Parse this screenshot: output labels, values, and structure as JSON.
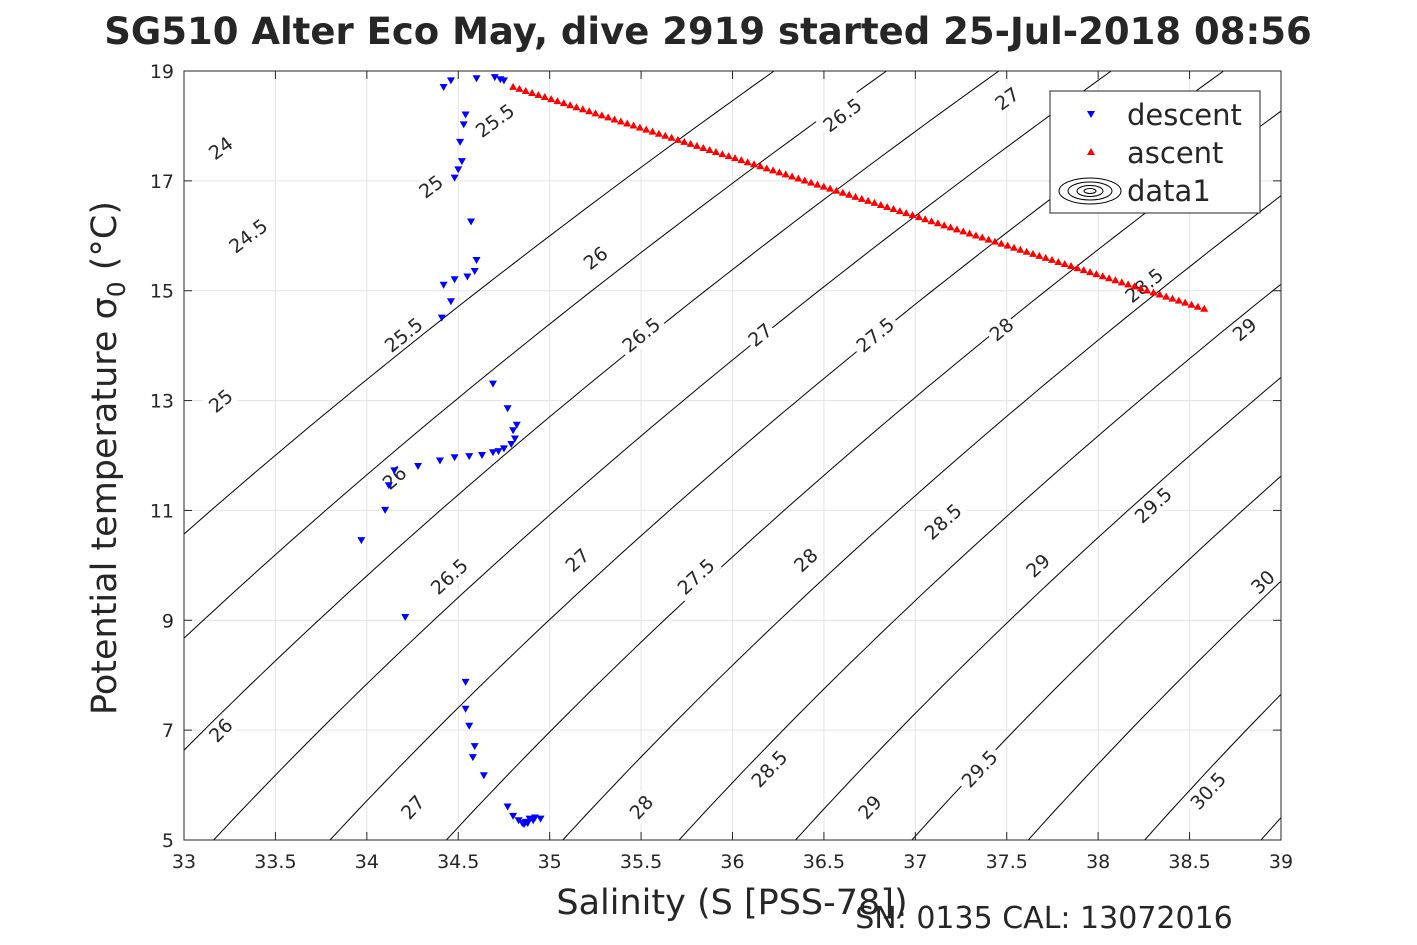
{
  "chart_data": {
    "type": "scatter",
    "title": "SG510 Alter Eco May, dive 2919 started 25-Jul-2018 08:56",
    "xlabel": "Salinity (S [PSS-78])",
    "ylabel": "Potential temperature σ",
    "ylabel_sub": "0",
    "ylabel_unit": " (°C)",
    "footer": "SN: 0135  CAL: 13072016",
    "xlim": [
      33,
      39
    ],
    "ylim": [
      5,
      19
    ],
    "grid": true,
    "legend_position": "top-right",
    "x_ticks": [
      33,
      33.5,
      34,
      34.5,
      35,
      35.5,
      36,
      36.5,
      37,
      37.5,
      38,
      38.5,
      39
    ],
    "x_tick_labels": [
      "33",
      "33.5",
      "34",
      "34.5",
      "35",
      "35.5",
      "36",
      "36.5",
      "37",
      "37.5",
      "38",
      "38.5",
      "39"
    ],
    "y_ticks": [
      5,
      7,
      9,
      11,
      13,
      15,
      17,
      19
    ],
    "y_tick_labels": [
      "5",
      "7",
      "9",
      "11",
      "13",
      "15",
      "17",
      "19"
    ],
    "contour_levels": [
      24,
      24.5,
      25,
      25.5,
      26,
      26.5,
      27,
      27.5,
      28,
      28.5,
      29,
      29.5,
      30,
      30.5
    ],
    "contour_labels": [
      {
        "text": "24",
        "s": 33.2,
        "t": 17.6
      },
      {
        "text": "24.5",
        "s": 33.35,
        "t": 16.0
      },
      {
        "text": "25",
        "s": 33.2,
        "t": 13.0
      },
      {
        "text": "25",
        "s": 34.35,
        "t": 16.9
      },
      {
        "text": "25.5",
        "s": 34.7,
        "t": 18.1
      },
      {
        "text": "25.5",
        "s": 34.2,
        "t": 14.2
      },
      {
        "text": "26",
        "s": 33.2,
        "t": 7.0
      },
      {
        "text": "26",
        "s": 34.15,
        "t": 11.6
      },
      {
        "text": "26",
        "s": 35.25,
        "t": 15.6
      },
      {
        "text": "26.5",
        "s": 36.6,
        "t": 18.2
      },
      {
        "text": "26.5",
        "s": 35.5,
        "t": 14.2
      },
      {
        "text": "26.5",
        "s": 34.45,
        "t": 9.8
      },
      {
        "text": "27",
        "s": 37.5,
        "t": 18.5
      },
      {
        "text": "27",
        "s": 36.15,
        "t": 14.2
      },
      {
        "text": "27",
        "s": 35.15,
        "t": 10.1
      },
      {
        "text": "27",
        "s": 34.25,
        "t": 5.6
      },
      {
        "text": "27.5",
        "s": 36.78,
        "t": 14.2
      },
      {
        "text": "27.5",
        "s": 35.8,
        "t": 9.8
      },
      {
        "text": "28",
        "s": 37.47,
        "t": 14.3
      },
      {
        "text": "28",
        "s": 36.4,
        "t": 10.1
      },
      {
        "text": "28",
        "s": 35.5,
        "t": 5.6
      },
      {
        "text": "28.5",
        "s": 38.25,
        "t": 15.1
      },
      {
        "text": "28.5",
        "s": 37.15,
        "t": 10.8
      },
      {
        "text": "28.5",
        "s": 36.2,
        "t": 6.3
      },
      {
        "text": "29",
        "s": 38.8,
        "t": 14.3
      },
      {
        "text": "29",
        "s": 37.67,
        "t": 10.0
      },
      {
        "text": "29",
        "s": 36.75,
        "t": 5.6
      },
      {
        "text": "29.5",
        "s": 38.3,
        "t": 11.1
      },
      {
        "text": "29.5",
        "s": 37.35,
        "t": 6.3
      },
      {
        "text": "30",
        "s": 38.9,
        "t": 9.7
      },
      {
        "text": "30.5",
        "s": 38.6,
        "t": 5.9
      }
    ],
    "series": [
      {
        "name": "descent",
        "color": "#0000ff",
        "marker": "triangle-down",
        "points": [
          [
            34.7,
            18.88
          ],
          [
            34.73,
            18.84
          ],
          [
            34.75,
            18.82
          ],
          [
            34.6,
            18.86
          ],
          [
            34.46,
            18.82
          ],
          [
            34.42,
            18.7
          ],
          [
            34.54,
            18.2
          ],
          [
            34.53,
            18.02
          ],
          [
            34.51,
            17.7
          ],
          [
            34.52,
            17.35
          ],
          [
            34.5,
            17.2
          ],
          [
            34.48,
            17.05
          ],
          [
            34.57,
            16.25
          ],
          [
            34.6,
            15.55
          ],
          [
            34.59,
            15.35
          ],
          [
            34.55,
            15.25
          ],
          [
            34.48,
            15.2
          ],
          [
            34.42,
            15.1
          ],
          [
            34.46,
            14.8
          ],
          [
            34.41,
            14.5
          ],
          [
            34.69,
            13.3
          ],
          [
            34.77,
            12.85
          ],
          [
            34.82,
            12.55
          ],
          [
            34.8,
            12.45
          ],
          [
            34.81,
            12.3
          ],
          [
            34.79,
            12.2
          ],
          [
            34.75,
            12.12
          ],
          [
            34.72,
            12.07
          ],
          [
            34.69,
            12.05
          ],
          [
            34.63,
            12.0
          ],
          [
            34.56,
            11.98
          ],
          [
            34.48,
            11.96
          ],
          [
            34.4,
            11.9
          ],
          [
            34.28,
            11.8
          ],
          [
            34.15,
            11.72
          ],
          [
            34.12,
            11.45
          ],
          [
            34.1,
            11.0
          ],
          [
            33.97,
            10.45
          ],
          [
            34.21,
            9.05
          ],
          [
            34.54,
            7.87
          ],
          [
            34.54,
            7.38
          ],
          [
            34.56,
            7.07
          ],
          [
            34.59,
            6.7
          ],
          [
            34.58,
            6.5
          ],
          [
            34.64,
            6.17
          ],
          [
            34.77,
            5.6
          ],
          [
            34.8,
            5.43
          ],
          [
            34.83,
            5.35
          ],
          [
            34.85,
            5.3
          ],
          [
            34.87,
            5.32
          ],
          [
            34.89,
            5.38
          ],
          [
            34.92,
            5.4
          ],
          [
            34.95,
            5.38
          ],
          [
            34.91,
            5.35
          ],
          [
            34.86,
            5.28
          ],
          [
            34.88,
            5.3
          ]
        ]
      },
      {
        "name": "ascent",
        "color": "#ff0000",
        "marker": "triangle-up",
        "line": {
          "s0": 34.8,
          "t0": 18.72,
          "s1": 38.58,
          "t1": 14.68,
          "count": 110
        }
      },
      {
        "name": "data1",
        "color": "#000000",
        "marker": "contour-ellipses"
      }
    ]
  }
}
